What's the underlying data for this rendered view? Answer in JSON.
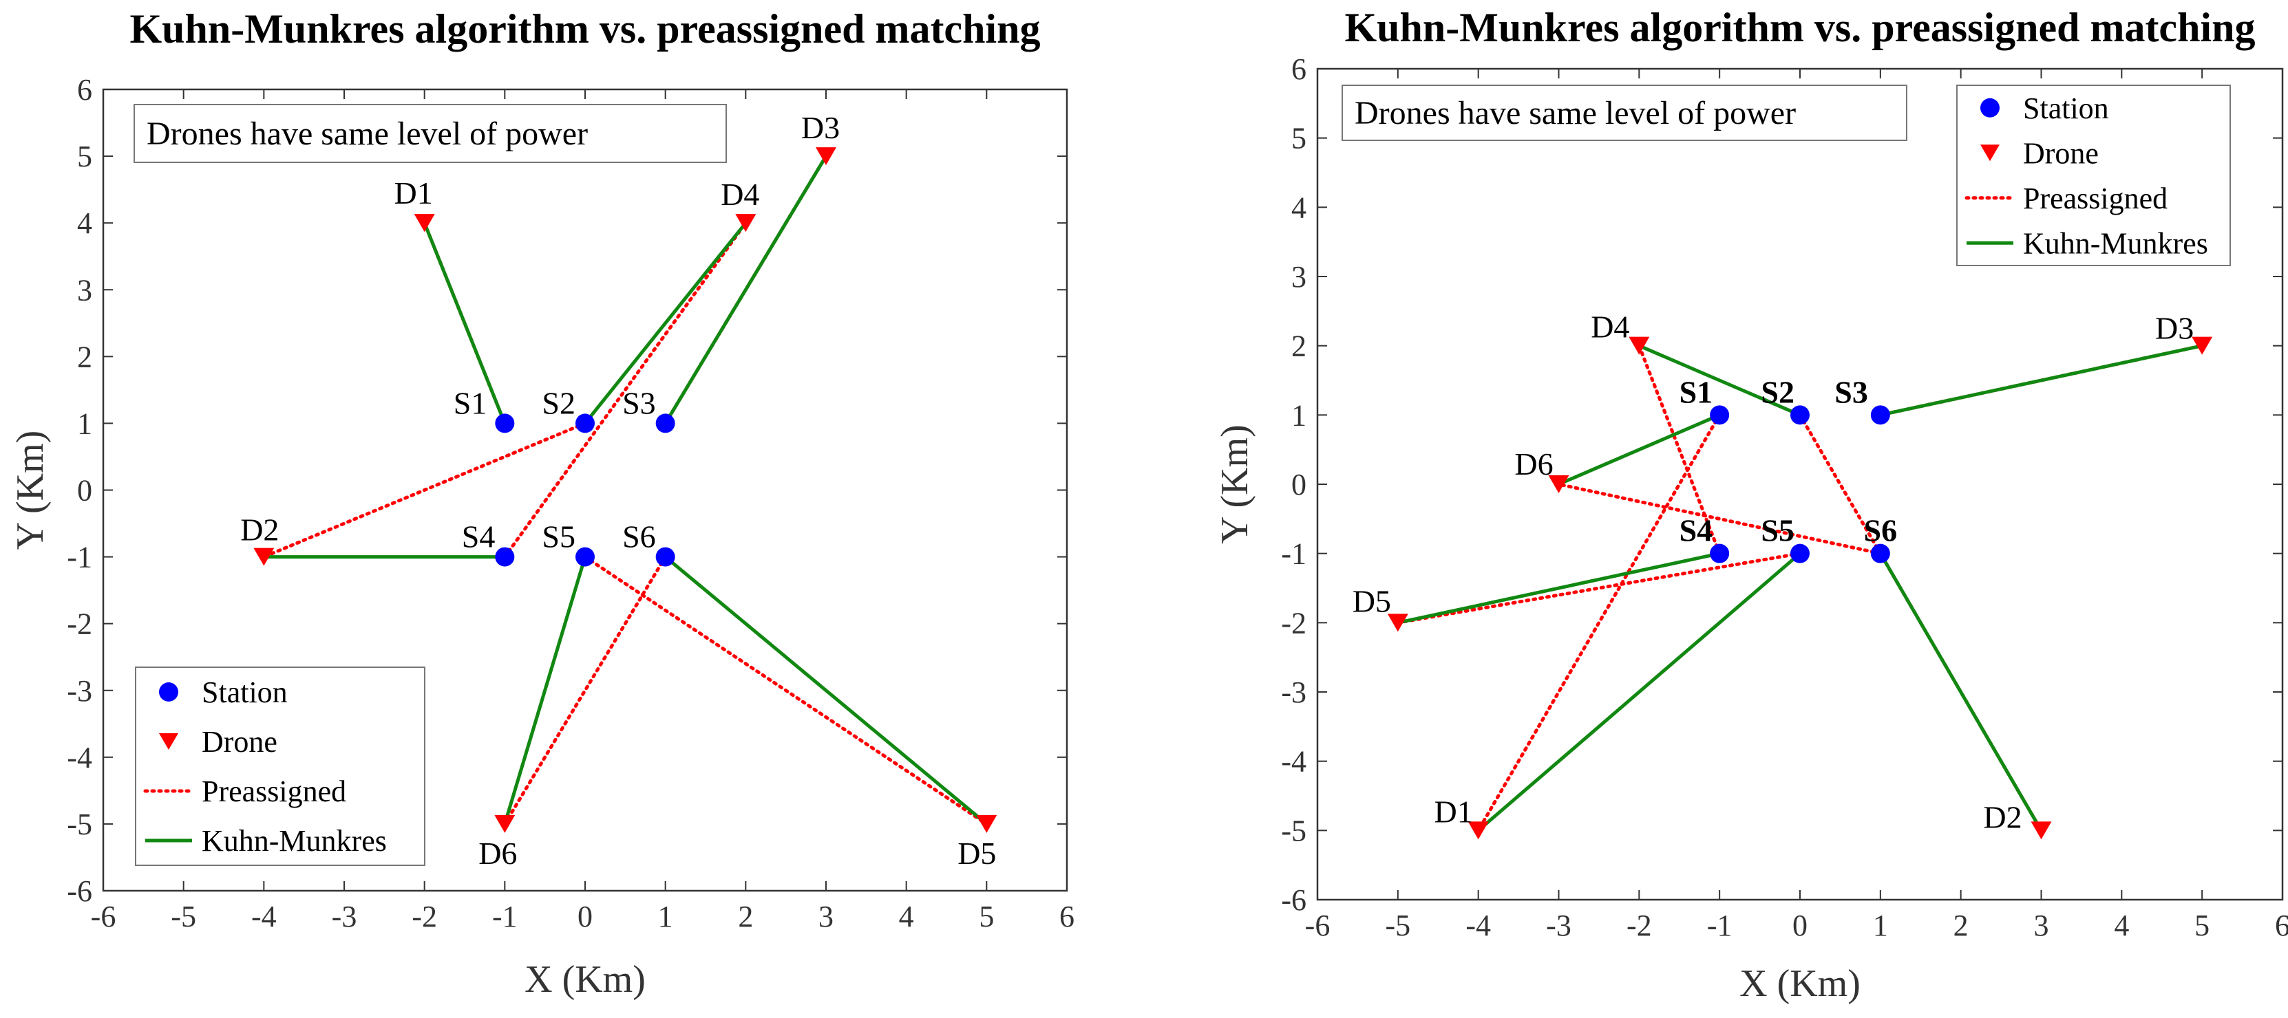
{
  "chart_data": [
    {
      "type": "scatter",
      "title": "Kuhn-Munkres algorithm vs. preassigned matching",
      "xlabel": "X (Km)",
      "ylabel": "Y (Km)",
      "xlim": [
        -6,
        6
      ],
      "ylim": [
        -6,
        6
      ],
      "xticks": [
        "-6",
        "-5",
        "-4",
        "-3",
        "-2",
        "-1",
        "0",
        "1",
        "2",
        "3",
        "4",
        "5",
        "6"
      ],
      "yticks": [
        "6",
        "5",
        "4",
        "3",
        "2",
        "1",
        "0",
        "-1",
        "-2",
        "-3",
        "-4",
        "-5",
        "-6"
      ],
      "annotation": "Drones have same level of power",
      "legend": {
        "position": "bottom-left",
        "entries": [
          "Station",
          "Drone",
          "Preassigned",
          "Kuhn-Munkres"
        ]
      },
      "label_bold": false,
      "stations": [
        {
          "name": "S1",
          "x": -1,
          "y": 1
        },
        {
          "name": "S2",
          "x": 0,
          "y": 1
        },
        {
          "name": "S3",
          "x": 1,
          "y": 1
        },
        {
          "name": "S4",
          "x": -1,
          "y": -1
        },
        {
          "name": "S5",
          "x": 0,
          "y": -1
        },
        {
          "name": "S6",
          "x": 1,
          "y": -1
        }
      ],
      "drones": [
        {
          "name": "D1",
          "x": -2,
          "y": 4
        },
        {
          "name": "D2",
          "x": -4,
          "y": -1
        },
        {
          "name": "D3",
          "x": 3,
          "y": 5
        },
        {
          "name": "D4",
          "x": 2,
          "y": 4
        },
        {
          "name": "D5",
          "x": 5,
          "y": -5
        },
        {
          "name": "D6",
          "x": -1,
          "y": -5
        }
      ],
      "preassigned": [
        {
          "station": "S1",
          "drone": "D1"
        },
        {
          "station": "S2",
          "drone": "D2"
        },
        {
          "station": "S3",
          "drone": "D3"
        },
        {
          "station": "S4",
          "drone": "D4"
        },
        {
          "station": "S5",
          "drone": "D5"
        },
        {
          "station": "S6",
          "drone": "D6"
        }
      ],
      "kuhn_munkres": [
        {
          "station": "S1",
          "drone": "D1"
        },
        {
          "station": "S2",
          "drone": "D4"
        },
        {
          "station": "S3",
          "drone": "D3"
        },
        {
          "station": "S4",
          "drone": "D2"
        },
        {
          "station": "S5",
          "drone": "D6"
        },
        {
          "station": "S6",
          "drone": "D5"
        }
      ]
    },
    {
      "type": "scatter",
      "title": "Kuhn-Munkres algorithm vs. preassigned matching",
      "xlabel": "X (Km)",
      "ylabel": "Y (Km)",
      "xlim": [
        -6,
        6
      ],
      "ylim": [
        -6,
        6
      ],
      "xticks": [
        "-6",
        "-5",
        "-4",
        "-3",
        "-2",
        "-1",
        "0",
        "1",
        "2",
        "3",
        "4",
        "5",
        "6"
      ],
      "yticks": [
        "6",
        "5",
        "4",
        "3",
        "2",
        "1",
        "0",
        "-1",
        "-2",
        "-3",
        "-4",
        "-5",
        "-6"
      ],
      "annotation": "Drones have same level of power",
      "legend": {
        "position": "top-right",
        "entries": [
          "Station",
          "Drone",
          "Preassigned",
          "Kuhn-Munkres"
        ]
      },
      "label_bold": true,
      "stations": [
        {
          "name": "S1",
          "x": -1,
          "y": 1
        },
        {
          "name": "S2",
          "x": 0,
          "y": 1
        },
        {
          "name": "S3",
          "x": 1,
          "y": 1
        },
        {
          "name": "S4",
          "x": -1,
          "y": -1
        },
        {
          "name": "S5",
          "x": 0,
          "y": -1
        },
        {
          "name": "S6",
          "x": 1,
          "y": -1
        }
      ],
      "drones": [
        {
          "name": "D1",
          "x": -4,
          "y": -5
        },
        {
          "name": "D2",
          "x": 3,
          "y": -5
        },
        {
          "name": "D3",
          "x": 5,
          "y": 2
        },
        {
          "name": "D4",
          "x": -2,
          "y": 2
        },
        {
          "name": "D5",
          "x": -5,
          "y": -2
        },
        {
          "name": "D6",
          "x": -3,
          "y": 0
        }
      ],
      "preassigned": [
        {
          "station": "S1",
          "drone": "D1"
        },
        {
          "station": "S2",
          "drone": "D2"
        },
        {
          "station": "S3",
          "drone": "D3"
        },
        {
          "station": "S4",
          "drone": "D4"
        },
        {
          "station": "S5",
          "drone": "D5"
        },
        {
          "station": "S6",
          "drone": "D6"
        }
      ],
      "kuhn_munkres": [
        {
          "station": "S1",
          "drone": "D6"
        },
        {
          "station": "S2",
          "drone": "D4"
        },
        {
          "station": "S3",
          "drone": "D3"
        },
        {
          "station": "S4",
          "drone": "D5"
        },
        {
          "station": "S5",
          "drone": "D1"
        },
        {
          "station": "S6",
          "drone": "D2"
        }
      ]
    }
  ],
  "colors": {
    "station": "#0000ff",
    "drone": "#ff0000",
    "preassigned": "#ff0000",
    "kuhn_munkres": "#118811",
    "axis": "#333333"
  }
}
